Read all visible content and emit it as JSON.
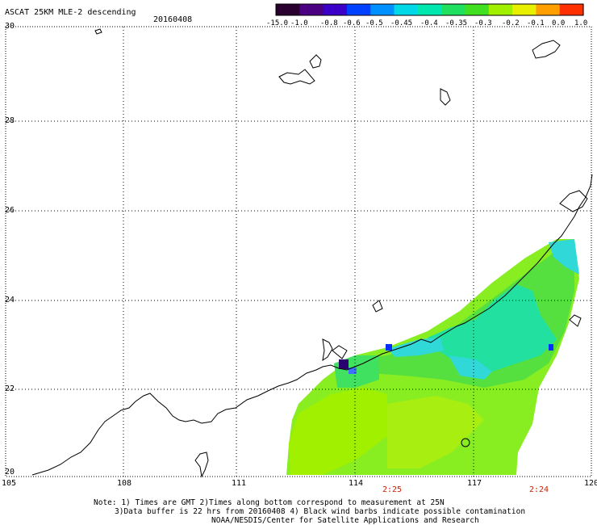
{
  "header": {
    "title": "ASCAT 25KM MLE-2 descending",
    "date": "20160408"
  },
  "colorbar": {
    "labels": [
      "-15.0",
      "-1.0",
      "-0.8",
      "-0.6",
      "-0.5",
      "-0.45",
      "-0.4",
      "-0.35",
      "-0.3",
      "-0.2",
      "-0.1",
      "0.0",
      "1.0"
    ],
    "colors": [
      "#2a0030",
      "#4b0082",
      "#3a00c8",
      "#0040ff",
      "#0090ff",
      "#00d8e8",
      "#00e8b0",
      "#20e060",
      "#40e020",
      "#a0f000",
      "#e8f000",
      "#ffa000",
      "#ff3000"
    ]
  },
  "axes": {
    "x_ticks": [
      "105",
      "108",
      "111",
      "114",
      "117",
      "120"
    ],
    "y_ticks": [
      "30",
      "28",
      "26",
      "24",
      "22",
      "20"
    ],
    "x_range": [
      105,
      120
    ],
    "y_range": [
      20,
      30
    ]
  },
  "pass_times": [
    "2:25",
    "2:24"
  ],
  "notes": {
    "line1": "Note: 1) Times are GMT 2)Times along bottom correspond to measurement at 25N",
    "line2": "3)Data buffer is 22 hrs from 20160408 4) Black wind barbs indicate possible contamination",
    "line3": "NOAA/NESDIS/Center for Satellite Applications and Research"
  }
}
